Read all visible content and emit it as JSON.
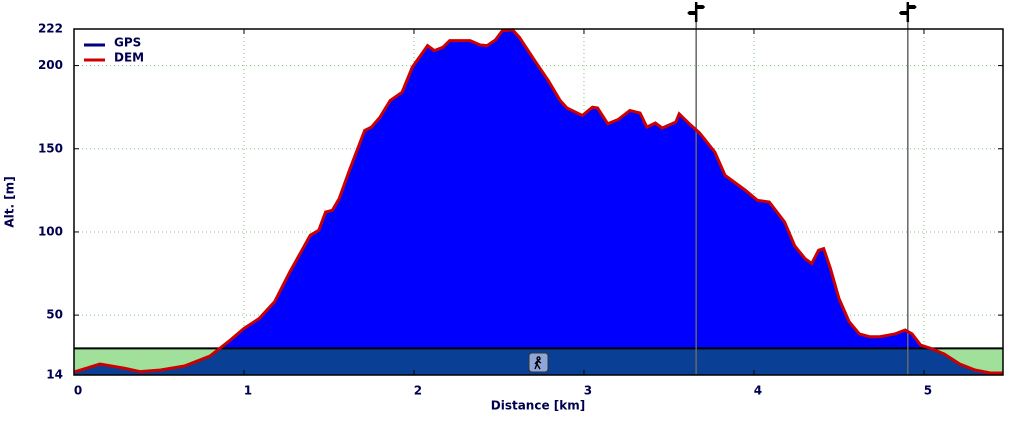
{
  "chart_data": {
    "type": "area",
    "xlabel": "Distance [km]",
    "ylabel": "Alt. [m]",
    "x": [
      0,
      0.153,
      0.3,
      0.39,
      0.51,
      0.65,
      0.8,
      0.92,
      1.0,
      1.09,
      1.18,
      1.27,
      1.33,
      1.39,
      1.44,
      1.48,
      1.52,
      1.56,
      1.62,
      1.71,
      1.75,
      1.8,
      1.86,
      1.93,
      1.99,
      2.08,
      2.12,
      2.17,
      2.21,
      2.33,
      2.39,
      2.43,
      2.48,
      2.52,
      2.58,
      2.62,
      2.71,
      2.79,
      2.86,
      2.9,
      2.99,
      3.05,
      3.08,
      3.14,
      3.2,
      3.27,
      3.33,
      3.37,
      3.42,
      3.46,
      3.54,
      3.56,
      3.62,
      3.68,
      3.77,
      3.83,
      3.95,
      4.02,
      4.09,
      4.18,
      4.24,
      4.3,
      4.34,
      4.38,
      4.41,
      4.45,
      4.5,
      4.56,
      4.62,
      4.68,
      4.74,
      4.83,
      4.89,
      4.93,
      4.98,
      5.04,
      5.12,
      5.21,
      5.3,
      5.39,
      5.465
    ],
    "series": [
      {
        "name": "GPS",
        "color": "#000080",
        "fill": "#0000ff",
        "values": [
          15.8,
          20.6,
          18,
          16,
          17,
          19.4,
          25.4,
          35,
          42,
          48,
          58,
          76,
          87,
          98,
          101,
          112,
          113,
          120,
          137,
          161,
          163,
          169,
          179,
          184,
          199,
          212,
          209,
          211,
          215,
          215,
          212.4,
          212,
          215.5,
          221,
          221.5,
          217,
          203,
          191,
          179,
          174.5,
          170,
          175,
          174.5,
          165,
          167.5,
          173,
          171.5,
          163,
          165.5,
          162.5,
          166,
          171,
          165,
          159.5,
          148,
          134,
          125,
          119,
          118,
          106,
          91.6,
          84,
          81,
          89,
          90,
          78,
          60,
          46,
          38.7,
          37,
          37,
          38.7,
          41,
          38.7,
          32,
          30,
          26.6,
          20.6,
          17,
          15.2,
          15.2
        ]
      },
      {
        "name": "DEM",
        "color": "#cc0000",
        "values": [
          15.8,
          20.6,
          18,
          16,
          17,
          19.4,
          25.4,
          35,
          42,
          48,
          58,
          76,
          87,
          98,
          101,
          112,
          113,
          120,
          137,
          161,
          163,
          169,
          179,
          184,
          199,
          212,
          209,
          211,
          215,
          215,
          212.4,
          212,
          215.5,
          221,
          221.5,
          217,
          203,
          191,
          179,
          174.5,
          170,
          175,
          174.5,
          165,
          167.5,
          173,
          171.5,
          163,
          165.5,
          162.5,
          166,
          171,
          165,
          159.5,
          148,
          134,
          125,
          119,
          118,
          106,
          91.6,
          84,
          81,
          89,
          90,
          78,
          60,
          46,
          38.7,
          37,
          37,
          38.7,
          41,
          38.7,
          32,
          30,
          26.6,
          20.6,
          17,
          15.2,
          15.2
        ]
      }
    ],
    "reference_line": 30,
    "markers_x": [
      3.66,
      4.905
    ],
    "xlim": [
      0,
      5.465
    ],
    "ylim": [
      14,
      222
    ],
    "xticks": [
      0,
      1,
      2,
      3,
      4,
      5
    ],
    "yticks": [
      14,
      50,
      100,
      150,
      200,
      222
    ],
    "grid": true,
    "legend": "upper left"
  }
}
